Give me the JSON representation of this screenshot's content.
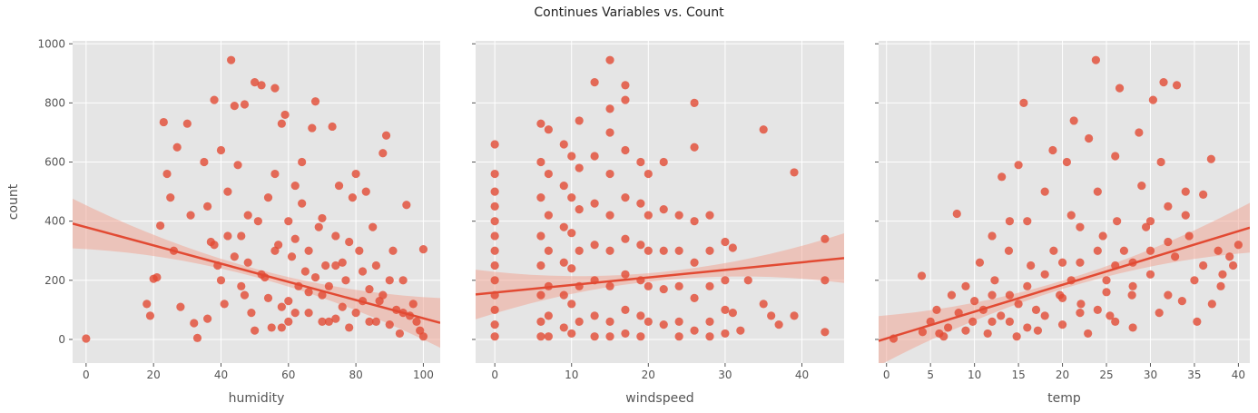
{
  "figure": {
    "title": "Continues Variables vs. Count"
  },
  "colors": {
    "panel_bg": "#e5e5e5",
    "grid": "#ffffff",
    "point": "#e24a33",
    "band": "#f0a898"
  },
  "chart_data": [
    {
      "type": "scatter",
      "xlabel": "humidity",
      "ylabel": "count",
      "xlim": [
        -4,
        105
      ],
      "ylim": [
        -80,
        1010
      ],
      "xticks": [
        0,
        20,
        40,
        60,
        80,
        100
      ],
      "yticks": [
        0,
        200,
        400,
        600,
        800,
        1000
      ],
      "regression": {
        "x": [
          -4,
          105
        ],
        "y": [
          392,
          56
        ]
      },
      "points": [
        [
          0,
          3
        ],
        [
          18,
          120
        ],
        [
          19,
          80
        ],
        [
          20,
          205
        ],
        [
          21,
          210
        ],
        [
          22,
          385
        ],
        [
          23,
          735
        ],
        [
          24,
          560
        ],
        [
          25,
          480
        ],
        [
          26,
          300
        ],
        [
          27,
          650
        ],
        [
          28,
          110
        ],
        [
          30,
          730
        ],
        [
          31,
          420
        ],
        [
          32,
          55
        ],
        [
          33,
          5
        ],
        [
          35,
          600
        ],
        [
          36,
          450
        ],
        [
          37,
          330
        ],
        [
          38,
          810
        ],
        [
          39,
          250
        ],
        [
          40,
          640
        ],
        [
          41,
          120
        ],
        [
          42,
          350
        ],
        [
          43,
          945
        ],
        [
          44,
          790
        ],
        [
          45,
          590
        ],
        [
          46,
          180
        ],
        [
          47,
          795
        ],
        [
          48,
          260
        ],
        [
          49,
          90
        ],
        [
          50,
          870
        ],
        [
          51,
          400
        ],
        [
          52,
          860
        ],
        [
          53,
          210
        ],
        [
          54,
          140
        ],
        [
          55,
          40
        ],
        [
          56,
          850
        ],
        [
          57,
          320
        ],
        [
          58,
          730
        ],
        [
          59,
          760
        ],
        [
          60,
          60
        ],
        [
          61,
          280
        ],
        [
          62,
          520
        ],
        [
          63,
          180
        ],
        [
          64,
          600
        ],
        [
          65,
          230
        ],
        [
          66,
          90
        ],
        [
          67,
          715
        ],
        [
          68,
          805
        ],
        [
          69,
          380
        ],
        [
          70,
          150
        ],
        [
          71,
          250
        ],
        [
          72,
          60
        ],
        [
          73,
          720
        ],
        [
          74,
          350
        ],
        [
          75,
          520
        ],
        [
          76,
          110
        ],
        [
          77,
          200
        ],
        [
          78,
          40
        ],
        [
          79,
          480
        ],
        [
          80,
          560
        ],
        [
          81,
          300
        ],
        [
          82,
          130
        ],
        [
          83,
          500
        ],
        [
          84,
          60
        ],
        [
          85,
          380
        ],
        [
          86,
          250
        ],
        [
          87,
          130
        ],
        [
          88,
          630
        ],
        [
          88,
          150
        ],
        [
          89,
          690
        ],
        [
          90,
          50
        ],
        [
          91,
          300
        ],
        [
          92,
          100
        ],
        [
          93,
          20
        ],
        [
          94,
          200
        ],
        [
          95,
          455
        ],
        [
          96,
          80
        ],
        [
          97,
          120
        ],
        [
          98,
          60
        ],
        [
          99,
          30
        ],
        [
          100,
          305
        ],
        [
          100,
          10
        ],
        [
          44,
          280
        ],
        [
          38,
          320
        ],
        [
          47,
          150
        ],
        [
          52,
          220
        ],
        [
          58,
          40
        ],
        [
          62,
          90
        ],
        [
          66,
          300
        ],
        [
          72,
          180
        ],
        [
          76,
          260
        ],
        [
          80,
          90
        ],
        [
          84,
          170
        ],
        [
          70,
          410
        ],
        [
          64,
          460
        ],
        [
          54,
          480
        ],
        [
          46,
          350
        ],
        [
          50,
          30
        ],
        [
          60,
          130
        ],
        [
          68,
          210
        ],
        [
          74,
          70
        ],
        [
          78,
          330
        ],
        [
          82,
          230
        ],
        [
          86,
          60
        ],
        [
          90,
          200
        ],
        [
          94,
          90
        ],
        [
          36,
          70
        ],
        [
          40,
          200
        ],
        [
          42,
          500
        ],
        [
          48,
          420
        ],
        [
          56,
          560
        ],
        [
          62,
          340
        ],
        [
          66,
          160
        ],
        [
          70,
          60
        ],
        [
          74,
          250
        ],
        [
          56,
          300
        ],
        [
          58,
          110
        ],
        [
          60,
          400
        ]
      ]
    },
    {
      "type": "scatter",
      "xlabel": "windspeed",
      "ylabel": "",
      "xlim": [
        -2.5,
        45.5
      ],
      "ylim": [
        -80,
        1010
      ],
      "xticks": [
        0,
        10,
        20,
        30,
        40
      ],
      "yticks": [
        0,
        200,
        400,
        600,
        800,
        1000
      ],
      "regression": {
        "x": [
          -2.5,
          45.5
        ],
        "y": [
          152,
          275
        ]
      },
      "points": [
        [
          0,
          660
        ],
        [
          0,
          560
        ],
        [
          0,
          500
        ],
        [
          0,
          450
        ],
        [
          0,
          400
        ],
        [
          0,
          350
        ],
        [
          0,
          300
        ],
        [
          0,
          250
        ],
        [
          0,
          200
        ],
        [
          0,
          150
        ],
        [
          0,
          100
        ],
        [
          0,
          50
        ],
        [
          0,
          10
        ],
        [
          6,
          730
        ],
        [
          6,
          600
        ],
        [
          6,
          480
        ],
        [
          6,
          350
        ],
        [
          6,
          250
        ],
        [
          6,
          150
        ],
        [
          6,
          60
        ],
        [
          6,
          10
        ],
        [
          7,
          710
        ],
        [
          7,
          560
        ],
        [
          7,
          420
        ],
        [
          7,
          300
        ],
        [
          7,
          180
        ],
        [
          7,
          80
        ],
        [
          7,
          10
        ],
        [
          9,
          660
        ],
        [
          9,
          520
        ],
        [
          9,
          380
        ],
        [
          9,
          260
        ],
        [
          9,
          150
        ],
        [
          9,
          40
        ],
        [
          10,
          620
        ],
        [
          10,
          480
        ],
        [
          10,
          360
        ],
        [
          10,
          240
        ],
        [
          10,
          120
        ],
        [
          10,
          20
        ],
        [
          11,
          740
        ],
        [
          11,
          580
        ],
        [
          11,
          440
        ],
        [
          11,
          300
        ],
        [
          11,
          180
        ],
        [
          11,
          60
        ],
        [
          13,
          870
        ],
        [
          13,
          620
        ],
        [
          13,
          460
        ],
        [
          13,
          320
        ],
        [
          13,
          200
        ],
        [
          13,
          80
        ],
        [
          13,
          10
        ],
        [
          15,
          945
        ],
        [
          15,
          780
        ],
        [
          15,
          700
        ],
        [
          15,
          560
        ],
        [
          15,
          420
        ],
        [
          15,
          300
        ],
        [
          15,
          180
        ],
        [
          15,
          60
        ],
        [
          15,
          10
        ],
        [
          17,
          860
        ],
        [
          17,
          810
        ],
        [
          17,
          640
        ],
        [
          17,
          480
        ],
        [
          17,
          340
        ],
        [
          17,
          220
        ],
        [
          17,
          100
        ],
        [
          17,
          20
        ],
        [
          19,
          600
        ],
        [
          19,
          460
        ],
        [
          19,
          320
        ],
        [
          19,
          200
        ],
        [
          19,
          80
        ],
        [
          19,
          10
        ],
        [
          20,
          560
        ],
        [
          20,
          420
        ],
        [
          20,
          300
        ],
        [
          20,
          180
        ],
        [
          20,
          60
        ],
        [
          22,
          600
        ],
        [
          22,
          440
        ],
        [
          22,
          300
        ],
        [
          22,
          170
        ],
        [
          22,
          50
        ],
        [
          24,
          420
        ],
        [
          24,
          300
        ],
        [
          24,
          180
        ],
        [
          24,
          60
        ],
        [
          24,
          10
        ],
        [
          26,
          800
        ],
        [
          26,
          650
        ],
        [
          26,
          400
        ],
        [
          26,
          260
        ],
        [
          26,
          140
        ],
        [
          26,
          30
        ],
        [
          28,
          420
        ],
        [
          28,
          300
        ],
        [
          28,
          180
        ],
        [
          28,
          60
        ],
        [
          28,
          10
        ],
        [
          30,
          330
        ],
        [
          30,
          200
        ],
        [
          30,
          100
        ],
        [
          30,
          20
        ],
        [
          31,
          310
        ],
        [
          31,
          90
        ],
        [
          32,
          30
        ],
        [
          33,
          200
        ],
        [
          35,
          710
        ],
        [
          35,
          120
        ],
        [
          36,
          80
        ],
        [
          37,
          50
        ],
        [
          39,
          565
        ],
        [
          39,
          80
        ],
        [
          43,
          340
        ],
        [
          43,
          200
        ],
        [
          43,
          25
        ]
      ]
    },
    {
      "type": "scatter",
      "xlabel": "temp",
      "ylabel": "",
      "xlim": [
        -0.9,
        41.3
      ],
      "ylim": [
        -80,
        1010
      ],
      "xticks": [
        0,
        5,
        10,
        15,
        20,
        25,
        30,
        35,
        40
      ],
      "yticks": [
        0,
        200,
        400,
        600,
        800,
        1000
      ],
      "regression": {
        "x": [
          -0.9,
          41.3
        ],
        "y": [
          -5,
          378
        ]
      },
      "points": [
        [
          0.8,
          3
        ],
        [
          4,
          215
        ],
        [
          4.1,
          25
        ],
        [
          5,
          60
        ],
        [
          5.7,
          100
        ],
        [
          6,
          20
        ],
        [
          6.5,
          10
        ],
        [
          7,
          40
        ],
        [
          7.4,
          150
        ],
        [
          8,
          425
        ],
        [
          8.2,
          90
        ],
        [
          9,
          30
        ],
        [
          9,
          180
        ],
        [
          9.8,
          60
        ],
        [
          10.6,
          260
        ],
        [
          11,
          100
        ],
        [
          11.5,
          20
        ],
        [
          12,
          350
        ],
        [
          12.3,
          200
        ],
        [
          13,
          80
        ],
        [
          13.1,
          550
        ],
        [
          13.9,
          300
        ],
        [
          14,
          150
        ],
        [
          14.8,
          10
        ],
        [
          15,
          590
        ],
        [
          15.6,
          800
        ],
        [
          16,
          400
        ],
        [
          16.4,
          250
        ],
        [
          17,
          100
        ],
        [
          17.2,
          30
        ],
        [
          18,
          500
        ],
        [
          18.9,
          640
        ],
        [
          19,
          300
        ],
        [
          19.7,
          150
        ],
        [
          20,
          50
        ],
        [
          20.5,
          600
        ],
        [
          21,
          420
        ],
        [
          21.3,
          740
        ],
        [
          22,
          260
        ],
        [
          22.1,
          120
        ],
        [
          22.9,
          20
        ],
        [
          23,
          680
        ],
        [
          23.8,
          945
        ],
        [
          24,
          500
        ],
        [
          24.6,
          350
        ],
        [
          25,
          200
        ],
        [
          25.4,
          80
        ],
        [
          26,
          620
        ],
        [
          26.2,
          400
        ],
        [
          26.5,
          850
        ],
        [
          27,
          300
        ],
        [
          27.9,
          150
        ],
        [
          28,
          40
        ],
        [
          28.7,
          700
        ],
        [
          29,
          520
        ],
        [
          29.5,
          380
        ],
        [
          30,
          220
        ],
        [
          30.3,
          810
        ],
        [
          31,
          90
        ],
        [
          31.2,
          600
        ],
        [
          31.5,
          870
        ],
        [
          32,
          450
        ],
        [
          32.8,
          280
        ],
        [
          33,
          860
        ],
        [
          33.6,
          130
        ],
        [
          34,
          500
        ],
        [
          34.4,
          350
        ],
        [
          35,
          200
        ],
        [
          35.3,
          60
        ],
        [
          36,
          490
        ],
        [
          36.9,
          610
        ],
        [
          37,
          120
        ],
        [
          37.7,
          300
        ],
        [
          38,
          180
        ],
        [
          39,
          280
        ],
        [
          40,
          320
        ],
        [
          39.4,
          250
        ],
        [
          38.2,
          220
        ],
        [
          10,
          130
        ],
        [
          12,
          60
        ],
        [
          14,
          400
        ],
        [
          16,
          180
        ],
        [
          18,
          80
        ],
        [
          20,
          260
        ],
        [
          22,
          380
        ],
        [
          24,
          100
        ],
        [
          26,
          250
        ],
        [
          28,
          180
        ],
        [
          30,
          300
        ],
        [
          32,
          150
        ],
        [
          34,
          420
        ],
        [
          36,
          250
        ],
        [
          18,
          220
        ],
        [
          20,
          140
        ],
        [
          24,
          300
        ],
        [
          26,
          60
        ],
        [
          30,
          400
        ],
        [
          32,
          330
        ],
        [
          12,
          150
        ],
        [
          14,
          60
        ],
        [
          16,
          40
        ],
        [
          22,
          90
        ],
        [
          28,
          260
        ],
        [
          15,
          120
        ],
        [
          21,
          200
        ],
        [
          25,
          160
        ]
      ]
    }
  ]
}
